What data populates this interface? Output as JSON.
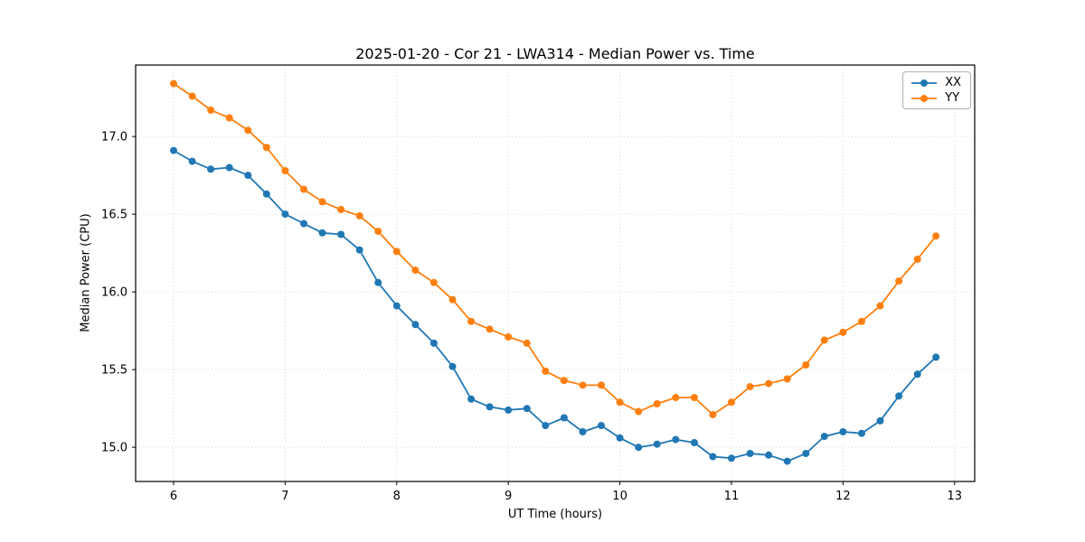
{
  "title": "2025-01-20 - Cor 21 - LWA314 - Median Power vs. Time",
  "chart_data": {
    "type": "line",
    "title": "2025-01-20 - Cor 21 - LWA314 - Median Power vs. Time",
    "xlabel": "UT Time (hours)",
    "ylabel": "Median Power (CPU)",
    "xlim": [
      5.66,
      13.18
    ],
    "ylim": [
      14.78,
      17.46
    ],
    "xticks": [
      6,
      7,
      8,
      9,
      10,
      11,
      12,
      13
    ],
    "xtick_labels": [
      "6",
      "7",
      "8",
      "9",
      "10",
      "11",
      "12",
      "13"
    ],
    "yticks": [
      15.0,
      15.5,
      16.0,
      16.5,
      17.0
    ],
    "ytick_labels": [
      "15.0",
      "15.5",
      "16.0",
      "16.5",
      "17.0"
    ],
    "grid": true,
    "legend_position": "upper right",
    "x": [
      6.0,
      6.167,
      6.333,
      6.5,
      6.667,
      6.833,
      7.0,
      7.167,
      7.333,
      7.5,
      7.667,
      7.833,
      8.0,
      8.167,
      8.333,
      8.5,
      8.667,
      8.833,
      9.0,
      9.167,
      9.333,
      9.5,
      9.667,
      9.833,
      10.0,
      10.167,
      10.333,
      10.5,
      10.667,
      10.833,
      11.0,
      11.167,
      11.333,
      11.5,
      11.667,
      11.833,
      12.0,
      12.167,
      12.333,
      12.5,
      12.667,
      12.833
    ],
    "series": [
      {
        "name": "XX",
        "color": "#1f77b4",
        "values": [
          16.91,
          16.84,
          16.79,
          16.8,
          16.75,
          16.63,
          16.5,
          16.44,
          16.38,
          16.37,
          16.27,
          16.06,
          15.91,
          15.79,
          15.67,
          15.52,
          15.31,
          15.26,
          15.24,
          15.25,
          15.14,
          15.19,
          15.1,
          15.14,
          15.06,
          15.0,
          15.02,
          15.05,
          15.03,
          14.94,
          14.93,
          14.96,
          14.95,
          14.91,
          14.96,
          15.07,
          15.1,
          15.09,
          15.17,
          15.33,
          15.47,
          15.58
        ]
      },
      {
        "name": "YY",
        "color": "#ff7f0e",
        "values": [
          17.34,
          17.26,
          17.17,
          17.12,
          17.04,
          16.93,
          16.78,
          16.66,
          16.58,
          16.53,
          16.49,
          16.39,
          16.26,
          16.14,
          16.06,
          15.95,
          15.81,
          15.76,
          15.71,
          15.67,
          15.49,
          15.43,
          15.4,
          15.4,
          15.29,
          15.23,
          15.28,
          15.32,
          15.32,
          15.21,
          15.29,
          15.39,
          15.41,
          15.44,
          15.53,
          15.69,
          15.74,
          15.81,
          15.91,
          16.07,
          16.21,
          16.36
        ]
      }
    ]
  }
}
